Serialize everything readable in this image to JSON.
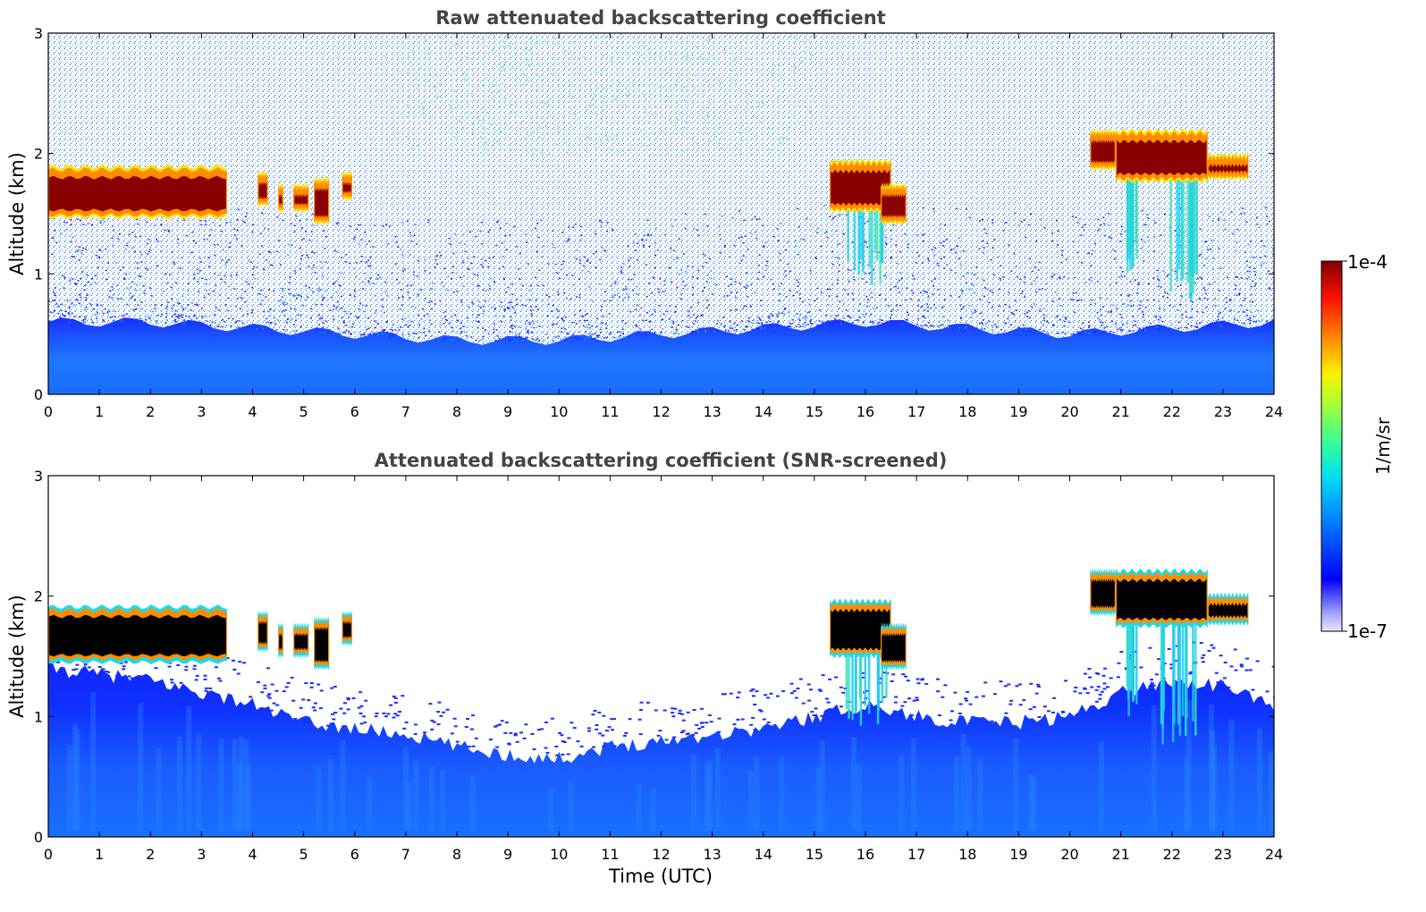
{
  "colors": {
    "background": "#ffffff",
    "noise_sparse": "#1e3cff",
    "aerosol_layer": "#1f74ff",
    "cloud_core": "#8a0000",
    "cloud_edge": "#ff8c00",
    "cloud_rim": "#ffe600",
    "screened_cloud_core": "#000000",
    "title_text": "#444444"
  },
  "colorbar": {
    "label": "1/m/sr",
    "max_label": "1e-4",
    "min_label": "1e-7",
    "scale": "log",
    "range": [
      1e-07,
      0.0001
    ],
    "colormap": "jet"
  },
  "chart_data": [
    {
      "type": "heatmap",
      "title": "Raw attenuated backscattering coefficient",
      "xlabel": "",
      "ylabel": "Altitude (km)",
      "xlim": [
        0,
        24
      ],
      "ylim": [
        0,
        3
      ],
      "x_ticks": [
        "0",
        "1",
        "2",
        "3",
        "4",
        "5",
        "6",
        "7",
        "8",
        "9",
        "10",
        "11",
        "12",
        "13",
        "14",
        "15",
        "16",
        "17",
        "18",
        "19",
        "20",
        "21",
        "22",
        "23",
        "24"
      ],
      "y_ticks": [
        "0",
        "1",
        "2",
        "3"
      ],
      "aerosol_top_km": [
        [
          0,
          0.6
        ],
        [
          2,
          0.6
        ],
        [
          4,
          0.55
        ],
        [
          6,
          0.5
        ],
        [
          8,
          0.45
        ],
        [
          10,
          0.45
        ],
        [
          12,
          0.5
        ],
        [
          14,
          0.55
        ],
        [
          16,
          0.6
        ],
        [
          18,
          0.55
        ],
        [
          20,
          0.5
        ],
        [
          22,
          0.55
        ],
        [
          24,
          0.6
        ]
      ],
      "cloud_layers": [
        {
          "t_start": 0.0,
          "t_end": 3.5,
          "base_km": 1.5,
          "top_km": 1.85
        },
        {
          "t_start": 4.1,
          "t_end": 4.3,
          "base_km": 1.6,
          "top_km": 1.8
        },
        {
          "t_start": 4.5,
          "t_end": 4.6,
          "base_km": 1.55,
          "top_km": 1.7
        },
        {
          "t_start": 4.8,
          "t_end": 5.1,
          "base_km": 1.55,
          "top_km": 1.7
        },
        {
          "t_start": 5.2,
          "t_end": 5.5,
          "base_km": 1.45,
          "top_km": 1.75
        },
        {
          "t_start": 5.75,
          "t_end": 5.95,
          "base_km": 1.65,
          "top_km": 1.8
        },
        {
          "t_start": 15.3,
          "t_end": 16.5,
          "base_km": 1.55,
          "top_km": 1.9
        },
        {
          "t_start": 16.3,
          "t_end": 16.8,
          "base_km": 1.45,
          "top_km": 1.7
        },
        {
          "t_start": 20.4,
          "t_end": 20.9,
          "base_km": 1.9,
          "top_km": 2.15
        },
        {
          "t_start": 20.9,
          "t_end": 22.7,
          "base_km": 1.8,
          "top_km": 2.15
        },
        {
          "t_start": 22.7,
          "t_end": 23.5,
          "base_km": 1.82,
          "top_km": 1.95
        }
      ],
      "precip_streaks": [
        {
          "t_start": 15.6,
          "t_end": 16.4,
          "top_km": 1.55,
          "bottom_km": 0.9
        },
        {
          "t_start": 21.1,
          "t_end": 21.3,
          "top_km": 1.9,
          "bottom_km": 1.0
        },
        {
          "t_start": 21.7,
          "t_end": 22.5,
          "top_km": 1.85,
          "bottom_km": 0.75
        }
      ]
    },
    {
      "type": "heatmap",
      "title": "Attenuated backscattering coefficient (SNR-screened)",
      "xlabel": "Time (UTC)",
      "ylabel": "Altitude (km)",
      "xlim": [
        0,
        24
      ],
      "ylim": [
        0,
        3
      ],
      "x_ticks": [
        "0",
        "1",
        "2",
        "3",
        "4",
        "5",
        "6",
        "7",
        "8",
        "9",
        "10",
        "11",
        "12",
        "13",
        "14",
        "15",
        "16",
        "17",
        "18",
        "19",
        "20",
        "21",
        "22",
        "23",
        "24"
      ],
      "y_ticks": [
        "0",
        "1",
        "2",
        "3"
      ],
      "screened_top_km": [
        [
          0,
          1.4
        ],
        [
          1,
          1.35
        ],
        [
          2,
          1.3
        ],
        [
          3,
          1.2
        ],
        [
          4,
          1.1
        ],
        [
          5,
          0.95
        ],
        [
          6,
          0.9
        ],
        [
          7,
          0.85
        ],
        [
          8,
          0.75
        ],
        [
          9,
          0.68
        ],
        [
          10,
          0.65
        ],
        [
          11,
          0.75
        ],
        [
          12,
          0.8
        ],
        [
          13,
          0.85
        ],
        [
          14,
          0.9
        ],
        [
          15,
          1.0
        ],
        [
          16,
          1.1
        ],
        [
          17,
          1.0
        ],
        [
          18,
          0.95
        ],
        [
          19,
          0.95
        ],
        [
          20,
          1.0
        ],
        [
          21,
          1.2
        ],
        [
          22,
          1.3
        ],
        [
          23,
          1.25
        ],
        [
          24,
          1.1
        ]
      ],
      "cloud_layers": [
        {
          "t_start": 0.0,
          "t_end": 3.5,
          "base_km": 1.5,
          "top_km": 1.85
        },
        {
          "t_start": 4.1,
          "t_end": 4.3,
          "base_km": 1.6,
          "top_km": 1.8
        },
        {
          "t_start": 4.5,
          "t_end": 4.6,
          "base_km": 1.55,
          "top_km": 1.7
        },
        {
          "t_start": 4.8,
          "t_end": 5.1,
          "base_km": 1.55,
          "top_km": 1.7
        },
        {
          "t_start": 5.2,
          "t_end": 5.5,
          "base_km": 1.45,
          "top_km": 1.75
        },
        {
          "t_start": 5.75,
          "t_end": 5.95,
          "base_km": 1.65,
          "top_km": 1.8
        },
        {
          "t_start": 15.3,
          "t_end": 16.5,
          "base_km": 1.55,
          "top_km": 1.9
        },
        {
          "t_start": 16.3,
          "t_end": 16.8,
          "base_km": 1.45,
          "top_km": 1.7
        },
        {
          "t_start": 20.4,
          "t_end": 20.9,
          "base_km": 1.9,
          "top_km": 2.15
        },
        {
          "t_start": 20.9,
          "t_end": 22.7,
          "base_km": 1.8,
          "top_km": 2.15
        },
        {
          "t_start": 22.7,
          "t_end": 23.5,
          "base_km": 1.82,
          "top_km": 1.95
        }
      ],
      "precip_streaks": [
        {
          "t_start": 15.6,
          "t_end": 16.4,
          "top_km": 1.55,
          "bottom_km": 0.9
        },
        {
          "t_start": 21.1,
          "t_end": 21.3,
          "top_km": 1.9,
          "bottom_km": 1.0
        },
        {
          "t_start": 21.7,
          "t_end": 22.5,
          "top_km": 1.85,
          "bottom_km": 0.75
        }
      ]
    }
  ]
}
